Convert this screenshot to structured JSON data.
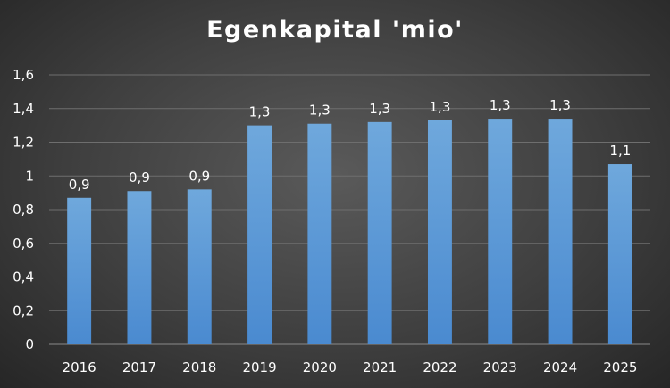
{
  "chart_data": {
    "type": "bar",
    "title": "Egenkapital 'mio'",
    "xlabel": "",
    "ylabel": "",
    "categories": [
      "2016",
      "2017",
      "2018",
      "2019",
      "2020",
      "2021",
      "2022",
      "2023",
      "2024",
      "2025"
    ],
    "values": [
      0.87,
      0.91,
      0.92,
      1.3,
      1.31,
      1.32,
      1.33,
      1.34,
      1.34,
      1.07
    ],
    "data_labels": [
      "0,9",
      "0,9",
      "0,9",
      "1,3",
      "1,3",
      "1,3",
      "1,3",
      "1,3",
      "1,3",
      "1,1"
    ],
    "ylim": [
      0,
      1.6
    ],
    "yticks": [
      "0",
      "0,2",
      "0,4",
      "0,6",
      "0,8",
      "1",
      "1,2",
      "1,4",
      "1,6"
    ],
    "grid": true,
    "legend": "none",
    "bar_color": "#5b9bd5"
  }
}
